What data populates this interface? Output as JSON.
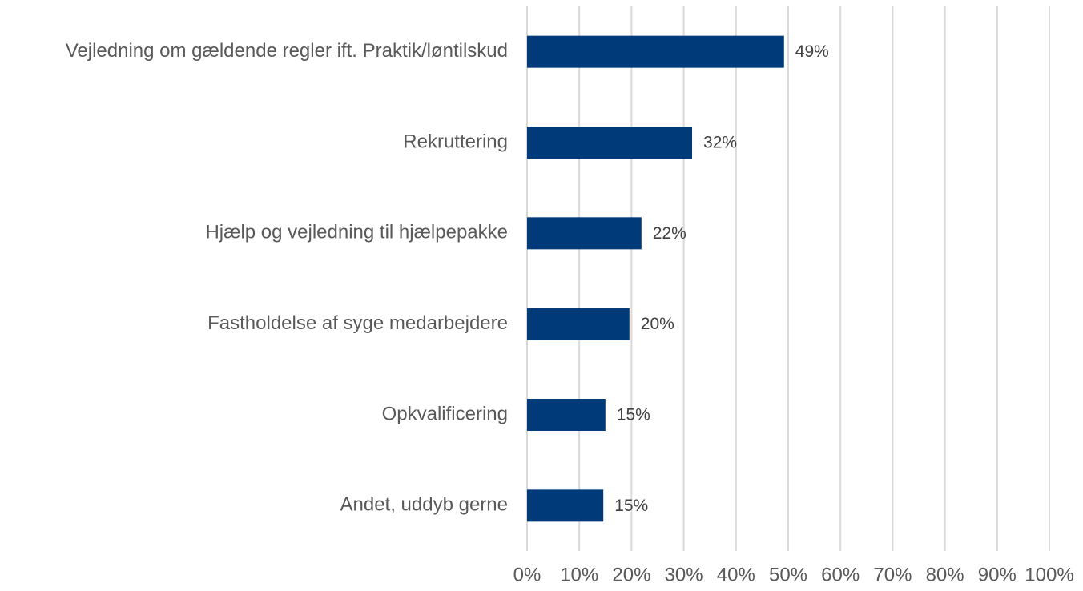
{
  "chart_data": {
    "type": "bar",
    "orientation": "horizontal",
    "categories": [
      "Vejledning om gældende regler ift. Praktik/løntilskud",
      "Rekruttering",
      "Hjælp og vejledning til hjælpepakke",
      "Fastholdelse af syge medarbejdere",
      "Opkvalificering",
      "Andet, uddyb gerne"
    ],
    "values": [
      49.2,
      31.6,
      21.9,
      19.6,
      15.0,
      14.6
    ],
    "value_labels": [
      "49%",
      "32%",
      "22%",
      "20%",
      "15%",
      "15%"
    ],
    "color": "#003a78",
    "xlim": [
      0,
      100
    ],
    "xticks": [
      {
        "value": 0,
        "label": "0%"
      },
      {
        "value": 10,
        "label": "10%"
      },
      {
        "value": 20,
        "label": "20%"
      },
      {
        "value": 30,
        "label": "30%"
      },
      {
        "value": 40,
        "label": "40%"
      },
      {
        "value": 50,
        "label": "50%"
      },
      {
        "value": 60,
        "label": "60%"
      },
      {
        "value": 70,
        "label": "70%"
      },
      {
        "value": 80,
        "label": "80%"
      },
      {
        "value": 90,
        "label": "90%"
      },
      {
        "value": 100,
        "label": "100%"
      }
    ],
    "grid": true
  }
}
